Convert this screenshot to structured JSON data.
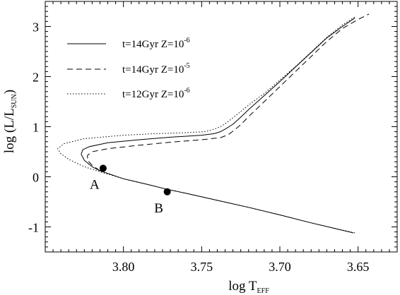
{
  "chart_data": {
    "type": "line",
    "xlabel_main": "log T",
    "xlabel_sub": "EFF",
    "ylabel_prefix": "log (L/L",
    "ylabel_sub": "SUN",
    "ylabel_suffix": ")",
    "xlim": [
      3.85,
      3.625
    ],
    "ylim": [
      -1.5,
      3.5
    ],
    "x_ticks": [
      {
        "value": 3.8,
        "label": "3.80"
      },
      {
        "value": 3.75,
        "label": "3.75"
      },
      {
        "value": 3.7,
        "label": "3.70"
      },
      {
        "value": 3.65,
        "label": "3.65"
      }
    ],
    "y_ticks": [
      {
        "value": -1,
        "label": "-1"
      },
      {
        "value": 0,
        "label": "0"
      },
      {
        "value": 1,
        "label": "1"
      },
      {
        "value": 2,
        "label": "2"
      },
      {
        "value": 3,
        "label": "3"
      }
    ],
    "series": [
      {
        "name": "t=14Gyr Z=10",
        "name_sup": "-6",
        "dash": "solid",
        "x": [
          3.653,
          3.665,
          3.68,
          3.7,
          3.72,
          3.74,
          3.76,
          3.772,
          3.785,
          3.8,
          3.815,
          3.82,
          3.825,
          3.827,
          3.826,
          3.822,
          3.81,
          3.79,
          3.77,
          3.75,
          3.742,
          3.738,
          3.735,
          3.73,
          3.725,
          3.72,
          3.71,
          3.7,
          3.69,
          3.68,
          3.67,
          3.66,
          3.652
        ],
        "y": [
          -1.12,
          -1.03,
          -0.92,
          -0.76,
          -0.61,
          -0.47,
          -0.33,
          -0.25,
          -0.15,
          -0.04,
          0.12,
          0.2,
          0.33,
          0.45,
          0.54,
          0.6,
          0.68,
          0.74,
          0.79,
          0.83,
          0.86,
          0.9,
          0.95,
          1.05,
          1.19,
          1.34,
          1.62,
          1.9,
          2.19,
          2.48,
          2.77,
          3.0,
          3.17
        ]
      },
      {
        "name": "t=14Gyr Z=10",
        "name_sup": "-5",
        "dash": "dashed",
        "x": [
          3.815,
          3.82,
          3.823,
          3.823,
          3.82,
          3.81,
          3.79,
          3.77,
          3.75,
          3.738,
          3.733,
          3.73,
          3.725,
          3.72,
          3.71,
          3.7,
          3.69,
          3.68,
          3.67,
          3.66,
          3.65,
          3.643
        ],
        "y": [
          0.12,
          0.23,
          0.33,
          0.43,
          0.5,
          0.56,
          0.63,
          0.69,
          0.74,
          0.78,
          0.84,
          0.91,
          1.04,
          1.2,
          1.5,
          1.8,
          2.1,
          2.4,
          2.7,
          2.96,
          3.14,
          3.25
        ]
      },
      {
        "name": "t=12Gyr Z=10",
        "name_sup": "-6",
        "dash": "dotted",
        "x": [
          3.652,
          3.665,
          3.68,
          3.7,
          3.72,
          3.74,
          3.76,
          3.772,
          3.785,
          3.8,
          3.815,
          3.825,
          3.835,
          3.84,
          3.842,
          3.838,
          3.825,
          3.8,
          3.78,
          3.76,
          3.748,
          3.742,
          3.738,
          3.734,
          3.729,
          3.724,
          3.718,
          3.71,
          3.7,
          3.69,
          3.68,
          3.67,
          3.66,
          3.652
        ],
        "y": [
          -1.12,
          -1.03,
          -0.92,
          -0.76,
          -0.61,
          -0.47,
          -0.33,
          -0.25,
          -0.15,
          -0.04,
          0.1,
          0.2,
          0.35,
          0.46,
          0.56,
          0.66,
          0.76,
          0.83,
          0.86,
          0.88,
          0.9,
          0.95,
          1.0,
          1.08,
          1.2,
          1.33,
          1.48,
          1.66,
          1.93,
          2.2,
          2.49,
          2.78,
          3.03,
          3.19
        ]
      }
    ],
    "points": [
      {
        "label": "A",
        "x": 3.813,
        "y": 0.17
      },
      {
        "label": "B",
        "x": 3.772,
        "y": -0.3
      }
    ],
    "legend_position": "top-left",
    "grid": false
  }
}
